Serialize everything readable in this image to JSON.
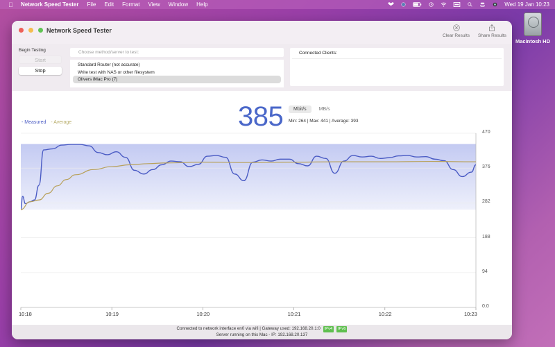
{
  "menubar": {
    "app_name": "Network Speed Tester",
    "items": [
      "File",
      "Edit",
      "Format",
      "View",
      "Window",
      "Help"
    ],
    "clock": "Wed 19 Jan  10:23",
    "status_icons": [
      "dropbox-icon",
      "vpn-icon",
      "battery-icon",
      "time-machine-icon",
      "wifi-icon",
      "keyboard-icon",
      "spotlight-icon",
      "control-center-icon",
      "siri-icon"
    ]
  },
  "desktop": {
    "drive_label": "Macintosh HD"
  },
  "window": {
    "title": "Network Speed Tester",
    "toolbar": {
      "clear_label": "Clear Results",
      "share_label": "Share Results"
    },
    "traffic_lights": {
      "close": "#ee5f57",
      "minimize": "#f5bd4f",
      "zoom": "#61c454"
    }
  },
  "controls": {
    "begin_label": "Begin Testing",
    "start_label": "Start",
    "stop_label": "Stop",
    "method_placeholder": "Choose method/server to test:",
    "methods": [
      {
        "label": "Standard Router (not accurate)",
        "selected": false
      },
      {
        "label": "Write test with NAS or other filesystem",
        "selected": false
      },
      {
        "label": "Olivers iMac Pro (7)",
        "selected": true
      }
    ],
    "clients_header": "Connected Clients:"
  },
  "readout": {
    "current": "385",
    "unit_selected": "Mbit/s",
    "unit_other": "MB/s",
    "stats": "Min: 264 | Max: 441 | Average: 393"
  },
  "legend": {
    "measured": "- Measured",
    "average": "- Average"
  },
  "colors": {
    "measured": "#4a5bc4",
    "average": "#b8a15a",
    "accent": "#4a67c9",
    "band": "#c7cdf3"
  },
  "status": {
    "line1": "Connected to network interface en0 via wifi | Gateway used: 192.168.20.1:0",
    "badges": [
      "IPv4",
      "IPv6"
    ],
    "line2": "Server running on this Mac - IP: 192.168.20.137"
  },
  "chart_data": {
    "type": "line",
    "title": "",
    "xlabel": "",
    "ylabel": "Mbit/s",
    "x_ticks": [
      "10:18",
      "10:19",
      "10:20",
      "10:21",
      "10:22",
      "10:23"
    ],
    "y_ticks": [
      "0.0",
      "94",
      "188",
      "282",
      "376",
      "470"
    ],
    "ylim": [
      0,
      470
    ],
    "band": {
      "min": 264,
      "max": 441
    },
    "grid": true,
    "legend_position": "top-left",
    "series": [
      {
        "name": "Measured",
        "x": [
          0,
          0.02,
          0.05,
          0.1,
          0.15,
          0.2,
          0.25,
          0.35,
          0.45,
          0.55,
          0.65,
          0.75,
          0.85,
          0.95,
          1.05,
          1.15,
          1.25,
          1.35,
          1.45,
          1.55,
          1.65,
          1.75,
          1.85,
          1.95,
          2.05,
          2.15,
          2.25,
          2.35,
          2.45,
          2.55,
          2.65,
          2.75,
          2.85,
          2.95,
          3.05,
          3.15,
          3.25,
          3.35,
          3.45,
          3.55,
          3.65,
          3.75,
          3.85,
          3.95,
          4.05,
          4.15,
          4.25,
          4.35,
          4.45,
          4.55,
          4.65,
          4.75,
          4.85,
          4.95,
          5.0
        ],
        "values": [
          264,
          300,
          280,
          285,
          290,
          330,
          425,
          428,
          438,
          440,
          440,
          436,
          418,
          412,
          420,
          405,
          370,
          360,
          372,
          385,
          395,
          393,
          380,
          386,
          408,
          410,
          405,
          360,
          342,
          392,
          398,
          395,
          400,
          400,
          388,
          382,
          408,
          402,
          362,
          395,
          410,
          406,
          408,
          402,
          404,
          409,
          410,
          406,
          407,
          400,
          396,
          372,
          353,
          365,
          385
        ]
      },
      {
        "name": "Average",
        "x": [
          0,
          0.1,
          0.2,
          0.3,
          0.4,
          0.5,
          0.6,
          0.8,
          1.0,
          1.2,
          1.4,
          1.6,
          2.0,
          2.5,
          3.0,
          3.5,
          4.0,
          4.5,
          5.0
        ],
        "values": [
          264,
          285,
          290,
          308,
          328,
          345,
          358,
          372,
          380,
          385,
          388,
          390,
          392,
          391,
          392,
          393,
          393,
          394,
          393
        ]
      }
    ]
  }
}
